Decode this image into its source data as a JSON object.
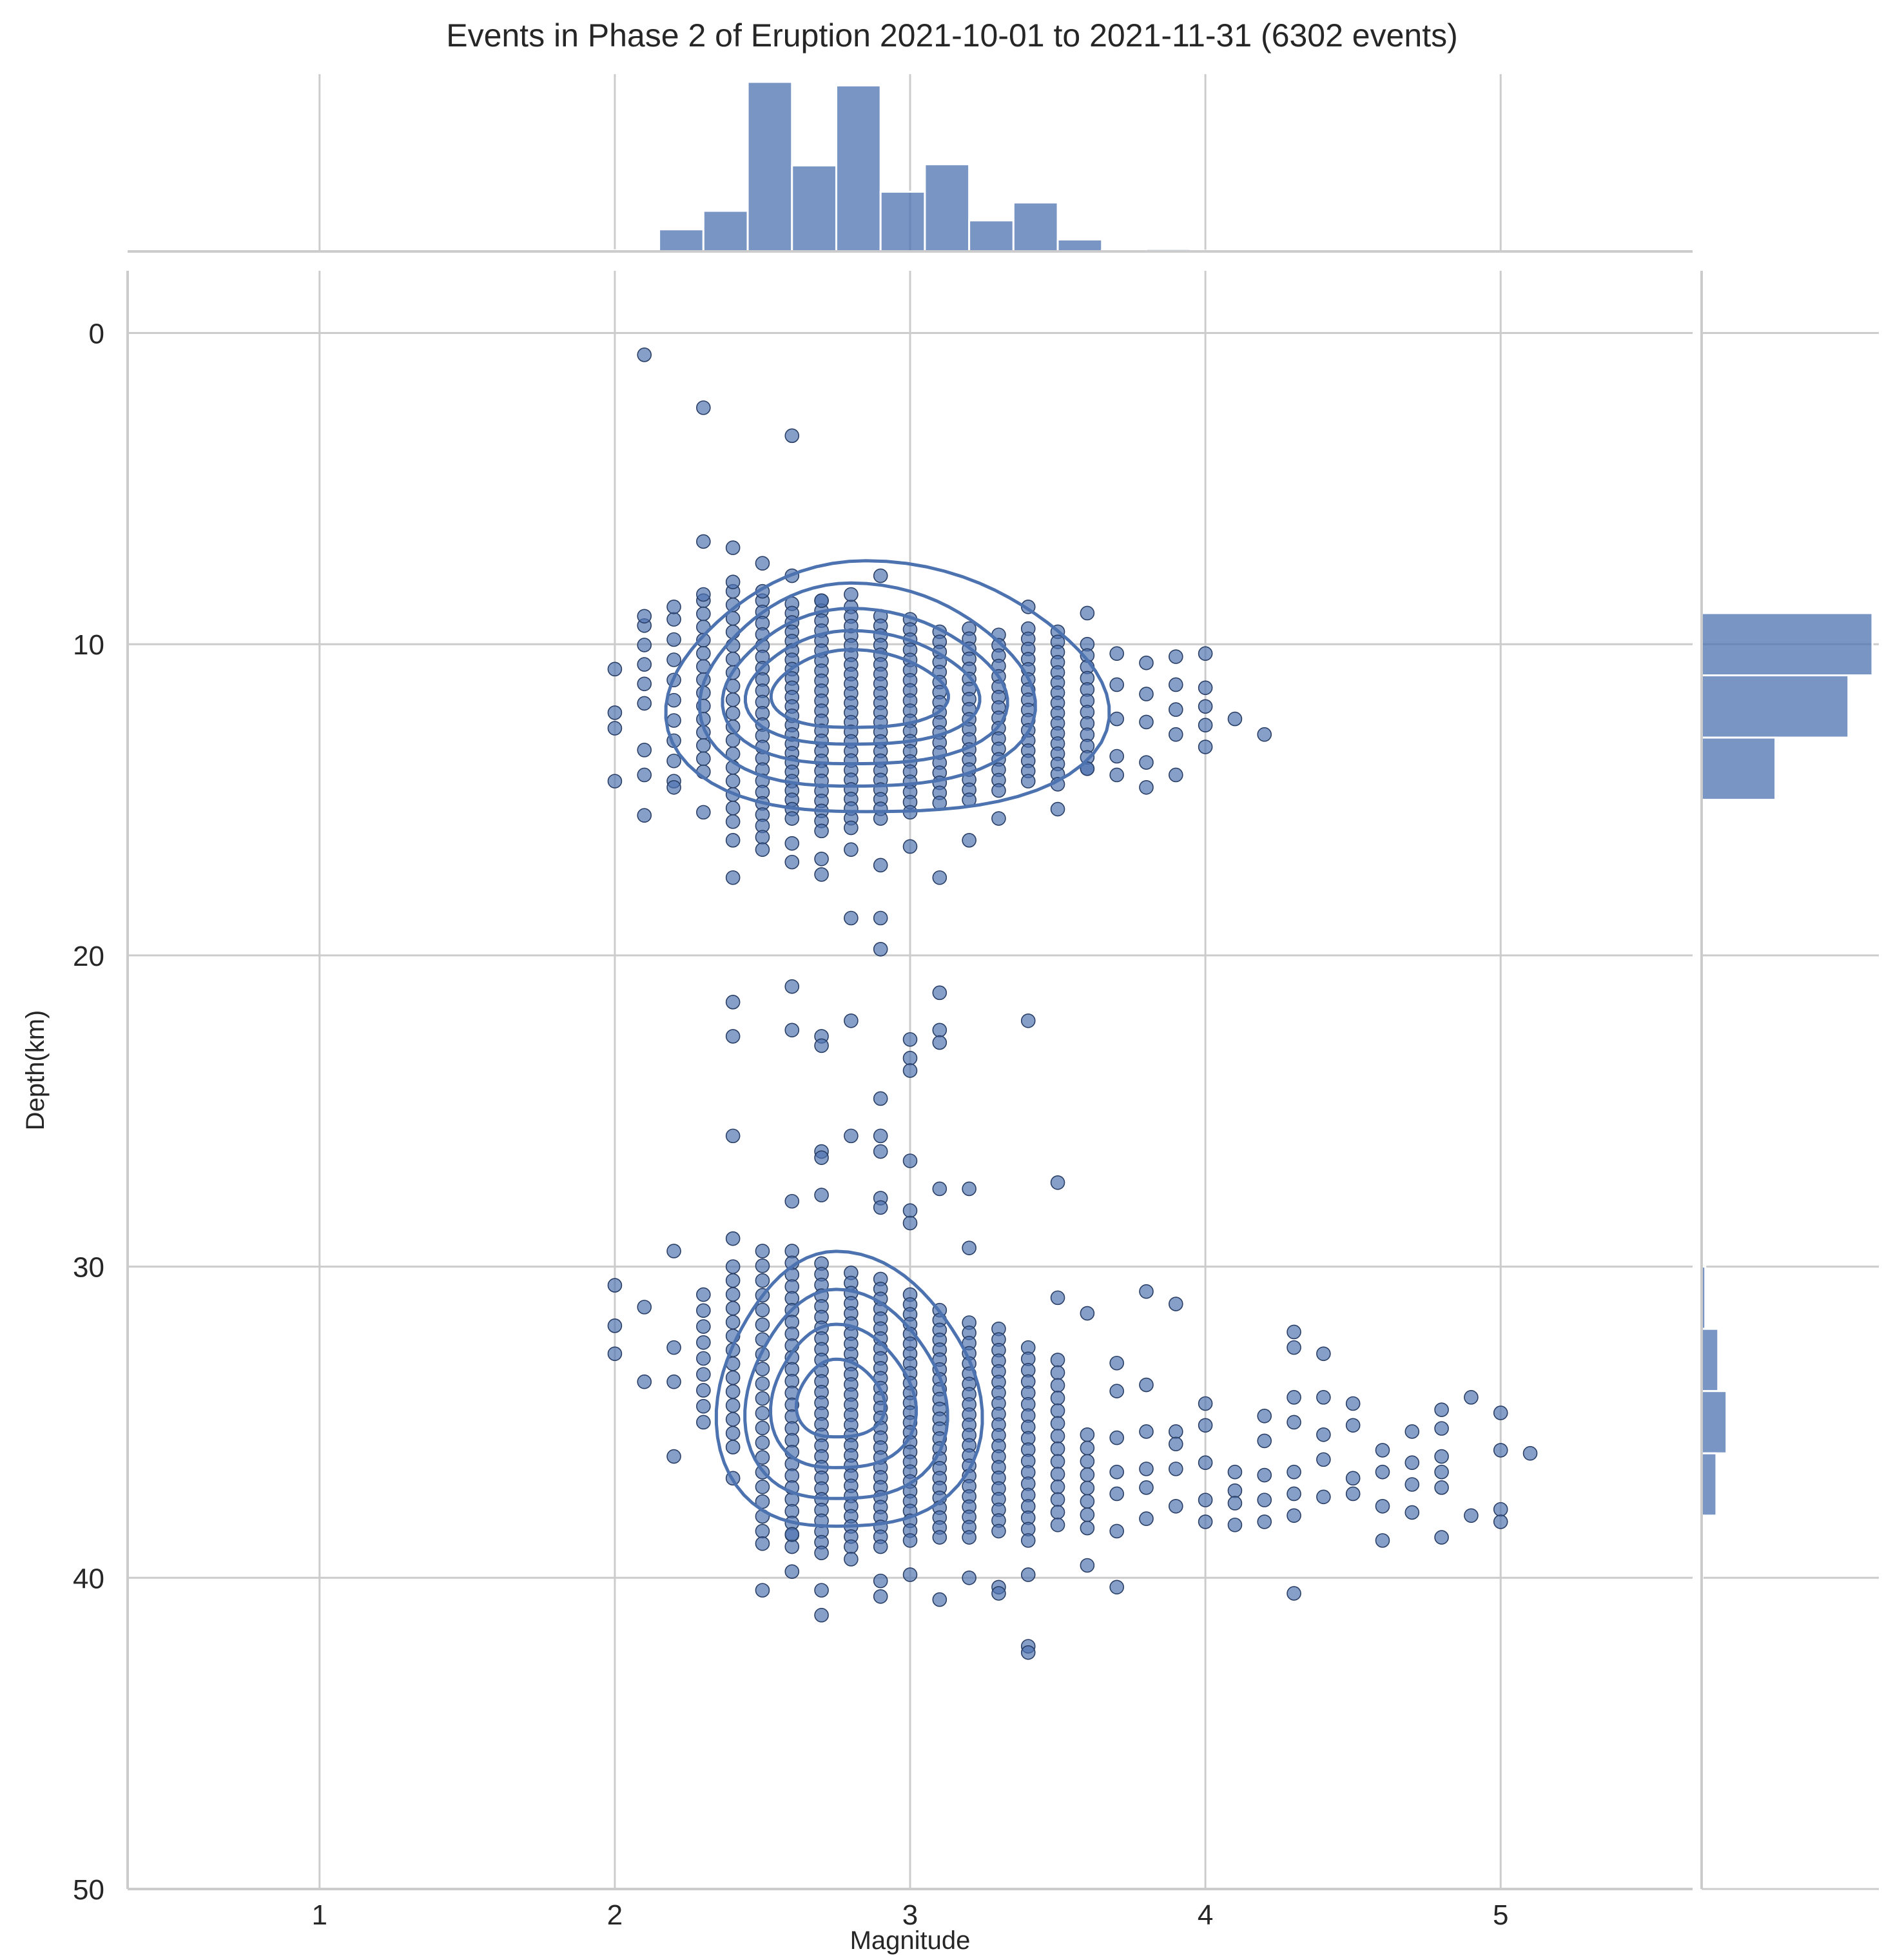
{
  "chart_data": {
    "type": "scatter",
    "title": "Events in Phase 2 of Eruption 2021-10-01 to 2021-11-31 (6302 events)",
    "xlabel": "Magnitude",
    "ylabel": "Depth(km)",
    "xlim": [
      0.35,
      5.65
    ],
    "ylim": [
      50,
      -2
    ],
    "y_inverted": true,
    "grid": true,
    "xticks": [
      1,
      2,
      3,
      4,
      5
    ],
    "yticks": [
      0,
      10,
      20,
      30,
      40,
      50
    ],
    "colors": {
      "main": "#4c72b0",
      "grid": "#cccccc",
      "text": "#262626",
      "marker_edge": "#2a3f66"
    },
    "scatter_points": [
      [
        2.1,
        0.7
      ],
      [
        2.3,
        2.4
      ],
      [
        2.6,
        3.3
      ],
      [
        2.3,
        6.7
      ],
      [
        2.4,
        6.9
      ],
      [
        2.5,
        7.4
      ],
      [
        2.6,
        7.8
      ],
      [
        2.9,
        7.8
      ],
      [
        3.4,
        8.8
      ],
      [
        3.6,
        9.0
      ],
      [
        2.1,
        9.1
      ],
      [
        2.2,
        8.8
      ],
      [
        2.3,
        8.4
      ],
      [
        2.4,
        8.0
      ],
      [
        2.5,
        8.3
      ],
      [
        2.7,
        8.6
      ],
      [
        2.8,
        8.4
      ],
      [
        2.0,
        10.8
      ],
      [
        2.0,
        12.2
      ],
      [
        2.0,
        12.7
      ],
      [
        2.0,
        14.4
      ],
      [
        2.1,
        13.4
      ],
      [
        2.1,
        14.2
      ],
      [
        2.1,
        15.5
      ],
      [
        2.2,
        14.6
      ],
      [
        2.3,
        15.4
      ],
      [
        2.4,
        16.3
      ],
      [
        2.4,
        17.5
      ],
      [
        2.5,
        16.6
      ],
      [
        2.6,
        16.4
      ],
      [
        2.6,
        17.0
      ],
      [
        2.7,
        16.9
      ],
      [
        2.7,
        17.4
      ],
      [
        2.8,
        16.6
      ],
      [
        2.9,
        17.1
      ],
      [
        3.0,
        16.5
      ],
      [
        3.1,
        17.5
      ],
      [
        3.2,
        16.3
      ],
      [
        3.3,
        15.6
      ],
      [
        3.5,
        15.3
      ],
      [
        3.6,
        14.0
      ],
      [
        2.8,
        18.8
      ],
      [
        2.9,
        18.8
      ],
      [
        2.9,
        19.8
      ],
      [
        3.7,
        10.3
      ],
      [
        3.7,
        11.3
      ],
      [
        3.7,
        12.4
      ],
      [
        3.7,
        13.6
      ],
      [
        3.7,
        14.2
      ],
      [
        3.8,
        10.6
      ],
      [
        3.8,
        11.6
      ],
      [
        3.8,
        12.5
      ],
      [
        3.8,
        13.8
      ],
      [
        3.8,
        14.6
      ],
      [
        3.9,
        10.4
      ],
      [
        3.9,
        11.3
      ],
      [
        3.9,
        12.1
      ],
      [
        3.9,
        12.9
      ],
      [
        3.9,
        14.2
      ],
      [
        4.0,
        10.3
      ],
      [
        4.0,
        11.4
      ],
      [
        4.0,
        12.0
      ],
      [
        4.0,
        12.6
      ],
      [
        4.0,
        13.3
      ],
      [
        4.1,
        12.4
      ],
      [
        4.2,
        12.9
      ],
      [
        2.4,
        21.5
      ],
      [
        2.6,
        21.0
      ],
      [
        2.4,
        22.6
      ],
      [
        2.6,
        22.4
      ],
      [
        2.7,
        22.6
      ],
      [
        2.7,
        22.9
      ],
      [
        2.8,
        22.1
      ],
      [
        3.0,
        22.7
      ],
      [
        3.0,
        23.3
      ],
      [
        3.0,
        23.7
      ],
      [
        3.1,
        21.2
      ],
      [
        3.1,
        22.4
      ],
      [
        3.1,
        22.8
      ],
      [
        3.4,
        22.1
      ],
      [
        2.9,
        24.6
      ],
      [
        2.4,
        25.8
      ],
      [
        2.8,
        25.8
      ],
      [
        2.9,
        25.8
      ],
      [
        2.9,
        26.3
      ],
      [
        3.0,
        26.6
      ],
      [
        2.7,
        26.3
      ],
      [
        2.7,
        26.5
      ],
      [
        3.5,
        27.3
      ],
      [
        3.1,
        27.5
      ],
      [
        3.2,
        27.5
      ],
      [
        2.6,
        27.9
      ],
      [
        2.7,
        27.7
      ],
      [
        2.9,
        27.8
      ],
      [
        2.9,
        28.1
      ],
      [
        3.0,
        28.2
      ],
      [
        3.0,
        28.6
      ],
      [
        2.2,
        29.5
      ],
      [
        2.4,
        29.1
      ],
      [
        3.2,
        29.4
      ],
      [
        2.0,
        30.6
      ],
      [
        2.0,
        31.9
      ],
      [
        2.0,
        32.8
      ],
      [
        2.1,
        31.3
      ],
      [
        2.1,
        33.7
      ],
      [
        2.2,
        32.6
      ],
      [
        2.2,
        33.7
      ],
      [
        2.2,
        36.1
      ],
      [
        2.4,
        36.8
      ],
      [
        2.5,
        38.9
      ],
      [
        2.5,
        40.4
      ],
      [
        2.6,
        38.6
      ],
      [
        2.6,
        39.8
      ],
      [
        2.7,
        40.4
      ],
      [
        2.7,
        41.2
      ],
      [
        2.8,
        39.4
      ],
      [
        2.9,
        40.1
      ],
      [
        2.9,
        40.6
      ],
      [
        3.0,
        39.9
      ],
      [
        3.1,
        40.7
      ],
      [
        3.2,
        40.0
      ],
      [
        3.3,
        40.3
      ],
      [
        3.3,
        40.5
      ],
      [
        3.4,
        39.9
      ],
      [
        3.4,
        42.2
      ],
      [
        3.4,
        42.4
      ],
      [
        3.6,
        39.6
      ],
      [
        3.7,
        40.3
      ],
      [
        3.5,
        31.0
      ],
      [
        3.6,
        31.5
      ],
      [
        3.8,
        30.8
      ],
      [
        3.9,
        31.2
      ],
      [
        3.7,
        33.1
      ],
      [
        3.7,
        34.0
      ],
      [
        3.7,
        35.5
      ],
      [
        3.7,
        36.6
      ],
      [
        3.7,
        37.3
      ],
      [
        3.7,
        38.5
      ],
      [
        3.8,
        33.8
      ],
      [
        3.8,
        35.3
      ],
      [
        3.8,
        36.5
      ],
      [
        3.8,
        37.1
      ],
      [
        3.8,
        38.1
      ],
      [
        3.9,
        35.3
      ],
      [
        3.9,
        35.7
      ],
      [
        3.9,
        36.5
      ],
      [
        3.9,
        37.7
      ],
      [
        4.0,
        34.4
      ],
      [
        4.0,
        35.1
      ],
      [
        4.0,
        36.3
      ],
      [
        4.0,
        37.5
      ],
      [
        4.0,
        38.2
      ],
      [
        4.1,
        36.6
      ],
      [
        4.1,
        37.2
      ],
      [
        4.1,
        37.6
      ],
      [
        4.1,
        38.3
      ],
      [
        4.2,
        34.8
      ],
      [
        4.2,
        35.6
      ],
      [
        4.2,
        36.7
      ],
      [
        4.2,
        37.5
      ],
      [
        4.2,
        38.2
      ],
      [
        4.3,
        32.1
      ],
      [
        4.3,
        32.6
      ],
      [
        4.3,
        34.2
      ],
      [
        4.3,
        35.0
      ],
      [
        4.3,
        36.6
      ],
      [
        4.3,
        37.3
      ],
      [
        4.3,
        38.0
      ],
      [
        4.3,
        40.5
      ],
      [
        4.4,
        32.8
      ],
      [
        4.4,
        34.2
      ],
      [
        4.4,
        35.4
      ],
      [
        4.4,
        36.2
      ],
      [
        4.4,
        37.4
      ],
      [
        4.5,
        34.4
      ],
      [
        4.5,
        35.1
      ],
      [
        4.5,
        36.8
      ],
      [
        4.5,
        37.3
      ],
      [
        4.6,
        35.9
      ],
      [
        4.6,
        36.6
      ],
      [
        4.6,
        37.7
      ],
      [
        4.6,
        38.8
      ],
      [
        4.7,
        35.3
      ],
      [
        4.7,
        36.3
      ],
      [
        4.7,
        37.0
      ],
      [
        4.7,
        37.9
      ],
      [
        4.8,
        34.6
      ],
      [
        4.8,
        35.2
      ],
      [
        4.8,
        36.1
      ],
      [
        4.8,
        36.6
      ],
      [
        4.8,
        37.1
      ],
      [
        4.8,
        38.7
      ],
      [
        4.9,
        34.2
      ],
      [
        4.9,
        38.0
      ],
      [
        5.0,
        34.7
      ],
      [
        5.0,
        35.9
      ],
      [
        5.0,
        37.8
      ],
      [
        5.0,
        38.2
      ],
      [
        5.1,
        36.0
      ]
    ],
    "dense_columns": [
      {
        "x": 2.1,
        "y_range": [
          9.4,
          11.9
        ],
        "count": 5
      },
      {
        "x": 2.2,
        "y_range": [
          9.2,
          14.4
        ],
        "count": 9
      },
      {
        "x": 2.3,
        "y_range": [
          8.6,
          14.1
        ],
        "count": 14
      },
      {
        "x": 2.4,
        "y_range": [
          8.3,
          15.7
        ],
        "count": 18
      },
      {
        "x": 2.5,
        "y_range": [
          8.6,
          16.2
        ],
        "count": 22
      },
      {
        "x": 2.6,
        "y_range": [
          8.7,
          15.6
        ],
        "count": 24
      },
      {
        "x": 2.7,
        "y_range": [
          8.6,
          16.0
        ],
        "count": 24
      },
      {
        "x": 2.8,
        "y_range": [
          8.8,
          15.9
        ],
        "count": 24
      },
      {
        "x": 2.9,
        "y_range": [
          9.1,
          15.6
        ],
        "count": 22
      },
      {
        "x": 3.0,
        "y_range": [
          9.2,
          15.4
        ],
        "count": 20
      },
      {
        "x": 3.1,
        "y_range": [
          9.6,
          15.1
        ],
        "count": 18
      },
      {
        "x": 3.2,
        "y_range": [
          9.5,
          15.0
        ],
        "count": 18
      },
      {
        "x": 3.3,
        "y_range": [
          9.7,
          14.7
        ],
        "count": 16
      },
      {
        "x": 3.4,
        "y_range": [
          9.5,
          14.4
        ],
        "count": 16
      },
      {
        "x": 3.5,
        "y_range": [
          9.6,
          14.5
        ],
        "count": 16
      },
      {
        "x": 3.6,
        "y_range": [
          10.0,
          14.0
        ],
        "count": 12
      },
      {
        "x": 2.3,
        "y_range": [
          30.9,
          35.0
        ],
        "count": 9
      },
      {
        "x": 2.4,
        "y_range": [
          30.0,
          35.8
        ],
        "count": 14
      },
      {
        "x": 2.5,
        "y_range": [
          29.5,
          38.5
        ],
        "count": 20
      },
      {
        "x": 2.6,
        "y_range": [
          29.5,
          39.0
        ],
        "count": 26
      },
      {
        "x": 2.7,
        "y_range": [
          29.9,
          39.2
        ],
        "count": 28
      },
      {
        "x": 2.8,
        "y_range": [
          30.2,
          39.0
        ],
        "count": 28
      },
      {
        "x": 2.9,
        "y_range": [
          30.4,
          39.0
        ],
        "count": 28
      },
      {
        "x": 3.0,
        "y_range": [
          30.9,
          38.8
        ],
        "count": 26
      },
      {
        "x": 3.1,
        "y_range": [
          31.4,
          38.7
        ],
        "count": 24
      },
      {
        "x": 3.2,
        "y_range": [
          31.8,
          38.7
        ],
        "count": 22
      },
      {
        "x": 3.3,
        "y_range": [
          32.0,
          38.5
        ],
        "count": 20
      },
      {
        "x": 3.4,
        "y_range": [
          32.6,
          38.8
        ],
        "count": 18
      },
      {
        "x": 3.5,
        "y_range": [
          33.0,
          38.3
        ],
        "count": 14
      },
      {
        "x": 3.6,
        "y_range": [
          35.4,
          38.4
        ],
        "count": 8
      }
    ],
    "kde_contours": [
      {
        "center": [
          2.85,
          11.6
        ],
        "rx": 0.7,
        "ry": 4.2,
        "skew": 0.0
      },
      {
        "center": [
          2.8,
          11.5
        ],
        "rx": 0.53,
        "ry": 3.4,
        "skew": 0.0
      },
      {
        "center": [
          2.8,
          11.5
        ],
        "rx": 0.45,
        "ry": 2.6,
        "skew": 0.0
      },
      {
        "center": [
          2.8,
          11.5
        ],
        "rx": 0.37,
        "ry": 1.9,
        "skew": 0.0
      },
      {
        "center": [
          2.8,
          11.5
        ],
        "rx": 0.28,
        "ry": 1.3,
        "skew": 0.0
      },
      {
        "center": [
          2.75,
          34.2
        ],
        "rx": 0.42,
        "ry": 4.6,
        "skew": 0.0
      },
      {
        "center": [
          2.75,
          34.3
        ],
        "rx": 0.32,
        "ry": 3.5,
        "skew": 0.0
      },
      {
        "center": [
          2.75,
          34.3
        ],
        "rx": 0.23,
        "ry": 2.4,
        "skew": 0.0
      },
      {
        "center": [
          2.75,
          34.3
        ],
        "rx": 0.14,
        "ry": 1.3,
        "skew": 0.0
      }
    ],
    "marginal_x_hist": {
      "bin_edges": [
        2.0,
        2.15,
        2.3,
        2.45,
        2.6,
        2.75,
        2.9,
        3.05,
        3.2,
        3.35,
        3.5,
        3.65,
        3.8,
        3.95,
        4.1,
        4.25,
        4.4
      ],
      "counts": [
        10,
        185,
        340,
        1420,
        720,
        1390,
        500,
        730,
        260,
        410,
        100,
        12,
        20,
        6,
        8,
        0
      ]
    },
    "marginal_y_hist": {
      "bin_edges": [
        9.0,
        11.0,
        13.0,
        15.0,
        17.0,
        30.0,
        32.0,
        34.0,
        36.0,
        38.0,
        40.0
      ],
      "counts": [
        1850,
        1590,
        800,
        20,
        0,
        40,
        180,
        270,
        160,
        10
      ]
    }
  }
}
